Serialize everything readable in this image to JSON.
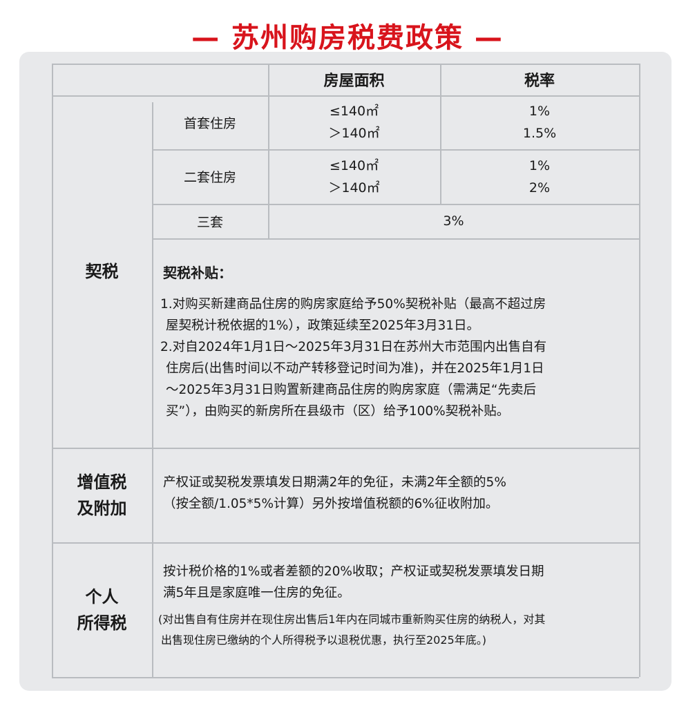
{
  "title": "— 苏州购房税费政策 —",
  "header": {
    "area": "房屋面积",
    "rate": "税率"
  },
  "deed_tax": {
    "label": "契税",
    "rows": [
      {
        "type": "首套住房",
        "areas": [
          "≤140㎡",
          "＞140㎡"
        ],
        "rates": [
          "1%",
          "1.5%"
        ]
      },
      {
        "type": "二套住房",
        "areas": [
          "≤140㎡",
          "＞140㎡"
        ],
        "rates": [
          "1%",
          "2%"
        ]
      }
    ],
    "third": {
      "type": "三套",
      "rate": "3%"
    },
    "subsidy_title": "契税补贴：",
    "subsidy_lines": [
      "1.对购买新建商品住房的购房家庭给予50%契税补贴（最高不超过房",
      "屋契税计税依据的1%），政策延续至2025年3月31日。",
      "2.对自2024年1月1日～2025年3月31日在苏州大市范围内出售自有",
      "住房后(出售时间以不动产转移登记时间为准)，并在2025年1月1日",
      "～2025年3月31日购置新建商品住房的购房家庭（需满足“先卖后",
      "买”），由购买的新房所在县级市（区）给予100%契税补贴。"
    ]
  },
  "vat": {
    "label_lines": [
      "增值税",
      "及附加"
    ],
    "lines": [
      "产权证或契税发票填发日期满2年的免征，未满2年全额的5%",
      "（按全额/1.05*5%计算）另外按增值税额的6%征收附加。"
    ]
  },
  "income_tax": {
    "label_lines": [
      "个人",
      "所得税"
    ],
    "lines": [
      "按计税价格的1%或者差额的20%收取；产权证或契税发票填发日期",
      "满5年且是家庭唯一住房的免征。"
    ],
    "note_lines": [
      "(对出售自有住房并在现住房出售后1年内在同城市重新购买住房的纳税人，对其",
      "出售现住房已缴纳的个人所得税予以退税优惠，执行至2025年底。)"
    ]
  }
}
